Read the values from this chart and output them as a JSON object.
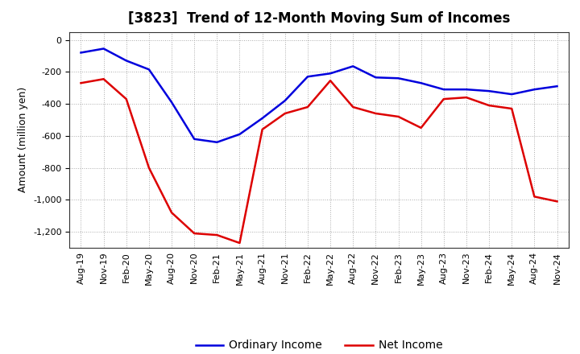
{
  "title": "[3823]  Trend of 12-Month Moving Sum of Incomes",
  "ylabel": "Amount (million yen)",
  "ylim": [
    -1300,
    50
  ],
  "yticks": [
    0,
    -200,
    -400,
    -600,
    -800,
    -1000,
    -1200
  ],
  "background_color": "#ffffff",
  "plot_bg_color": "#ffffff",
  "grid_color": "#aaaaaa",
  "x_labels": [
    "Aug-19",
    "Nov-19",
    "Feb-20",
    "May-20",
    "Aug-20",
    "Nov-20",
    "Feb-21",
    "May-21",
    "Aug-21",
    "Nov-21",
    "Feb-22",
    "May-22",
    "Aug-22",
    "Nov-22",
    "Feb-23",
    "May-23",
    "Aug-23",
    "Nov-23",
    "Feb-24",
    "May-24",
    "Aug-24",
    "Nov-24"
  ],
  "ordinary_income": [
    -80,
    -55,
    -130,
    -185,
    -390,
    -620,
    -640,
    -590,
    -490,
    -380,
    -230,
    -210,
    -165,
    -235,
    -240,
    -270,
    -310,
    -310,
    -320,
    -340,
    -310,
    -290
  ],
  "net_income": [
    -270,
    -245,
    -370,
    -800,
    -1080,
    -1210,
    -1220,
    -1270,
    -560,
    -460,
    -420,
    -255,
    -420,
    -460,
    -480,
    -550,
    -370,
    -360,
    -410,
    -430,
    -980,
    -1010
  ],
  "ordinary_color": "#0000dd",
  "net_color": "#dd0000",
  "line_width": 1.8,
  "legend_labels": [
    "Ordinary Income",
    "Net Income"
  ],
  "title_fontsize": 12,
  "label_fontsize": 9,
  "tick_fontsize": 8
}
